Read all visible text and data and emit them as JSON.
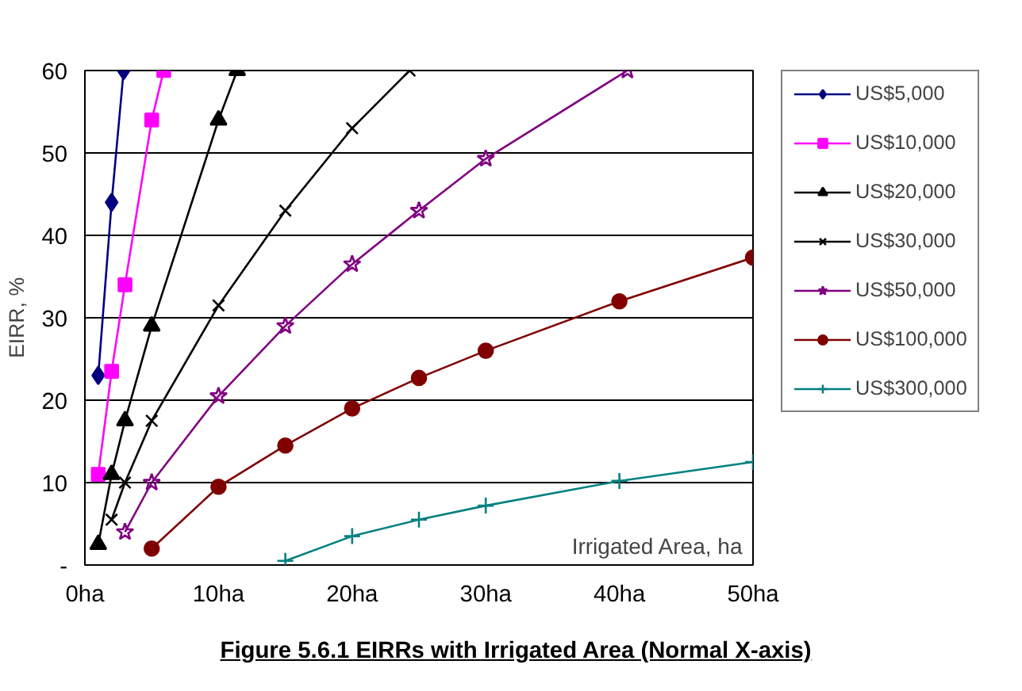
{
  "chart_data": {
    "type": "line",
    "title": "Figure 5.6.1 EIRRs with Irrigated Area (Normal X-axis)",
    "xlabel": "Irrigated Area, ha",
    "ylabel": "EIRR, %",
    "xlim": [
      0,
      50
    ],
    "ylim": [
      0,
      60
    ],
    "xticks": [
      {
        "value": 0,
        "label": "0ha"
      },
      {
        "value": 10,
        "label": "10ha"
      },
      {
        "value": 20,
        "label": "20ha"
      },
      {
        "value": 30,
        "label": "30ha"
      },
      {
        "value": 40,
        "label": "40ha"
      },
      {
        "value": 50,
        "label": "50ha"
      }
    ],
    "yticks": [
      {
        "value": 0,
        "label": "-"
      },
      10,
      20,
      30,
      40,
      50,
      60
    ],
    "grid": "y",
    "legend": "right",
    "series": [
      {
        "name": "US$5,000",
        "color": "#000080",
        "marker": "diamond",
        "x": [
          1,
          2,
          2.9
        ],
        "values": [
          23,
          44,
          60
        ]
      },
      {
        "name": "US$10,000",
        "color": "#ff00ff",
        "marker": "square",
        "x": [
          1,
          2,
          3,
          5,
          5.9
        ],
        "values": [
          11,
          23.5,
          34,
          54,
          60
        ]
      },
      {
        "name": "US$20,000",
        "color": "#000000",
        "marker": "triangle",
        "x": [
          1,
          2,
          3,
          5,
          10,
          11.4
        ],
        "values": [
          2.5,
          11,
          17.5,
          29,
          54,
          60
        ]
      },
      {
        "name": "US$30,000",
        "color": "#000000",
        "marker": "x",
        "x": [
          2,
          3,
          5,
          10,
          15,
          20,
          24.3
        ],
        "values": [
          5.5,
          10,
          17.5,
          31.5,
          43,
          53,
          60
        ]
      },
      {
        "name": "US$50,000",
        "color": "#800080",
        "marker": "star",
        "x": [
          3,
          5,
          10,
          15,
          20,
          25,
          30,
          40.6
        ],
        "values": [
          4,
          10,
          20.5,
          29,
          36.5,
          43,
          49.3,
          60
        ]
      },
      {
        "name": "US$100,000",
        "color": "#800000",
        "marker": "circle",
        "x": [
          5,
          10,
          15,
          20,
          25,
          30,
          40,
          50
        ],
        "values": [
          2,
          9.5,
          14.5,
          19,
          22.7,
          26,
          32,
          37.3
        ]
      },
      {
        "name": "US$300,000",
        "color": "#008080",
        "marker": "cross",
        "x": [
          15,
          20,
          25,
          30,
          40,
          50
        ],
        "values": [
          0.5,
          3.5,
          5.5,
          7.2,
          10.2,
          12.5
        ]
      }
    ]
  }
}
